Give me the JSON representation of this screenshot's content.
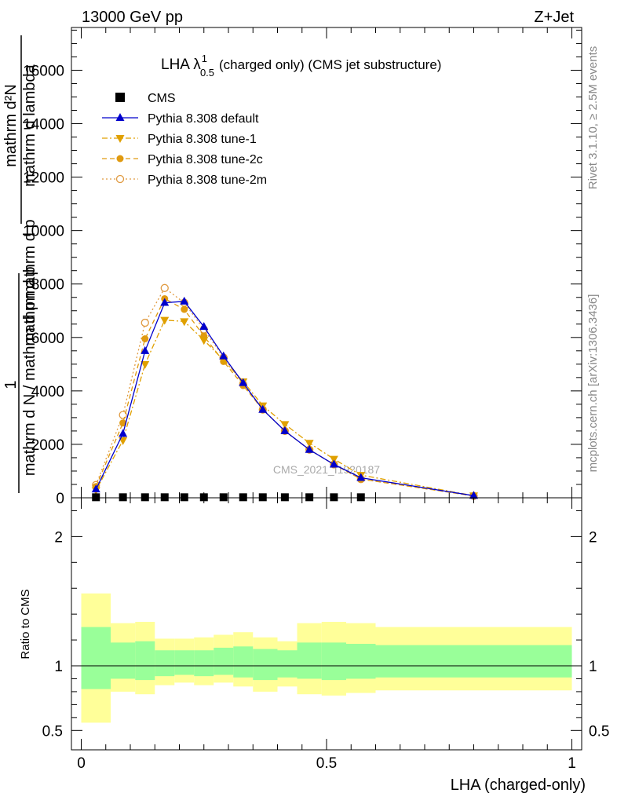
{
  "header": {
    "left": "13000 GeV pp",
    "right": "Z+Jet"
  },
  "side_labels": {
    "rivet": "Rivet 3.1.10, ≥ 2.5M events",
    "mcplots": "mcplots.cern.ch [arXiv:1306.3436]"
  },
  "chart_data": [
    {
      "type": "line",
      "title": "LHA λ",
      "title_sup": "1",
      "title_sub": "0.5",
      "title_rest": "(charged only) (CMS jet substructure)",
      "ylabel_top": "mathrm d²N",
      "ylabel_top2": "mathrm d p",
      "ylabel_mid": "mathrm d p",
      "ylabel_mid2": "mathrm d lambda",
      "ylabel_one": "1",
      "ylabel_bottom": "mathrm d N / mathrm d p",
      "ylabel_bottom2": "mathrm d lambda",
      "ylim": [
        0,
        17600
      ],
      "xlim": [
        -0.02,
        1.02
      ],
      "yticks": [
        0,
        2000,
        4000,
        6000,
        8000,
        10000,
        12000,
        14000,
        16000
      ],
      "ytick_labels": [
        "0",
        "2000",
        "4000",
        "6000",
        "8000",
        "10000",
        "12000",
        "14000",
        "16000"
      ],
      "watermark": "CMS_2021_I1920187",
      "legend_position": "top-left",
      "cms": {
        "name": "CMS",
        "x": [
          0.03,
          0.085,
          0.13,
          0.17,
          0.21,
          0.25,
          0.29,
          0.33,
          0.37,
          0.415,
          0.465,
          0.515,
          0.57
        ],
        "values": [
          20,
          20,
          20,
          20,
          20,
          20,
          20,
          20,
          20,
          20,
          20,
          20,
          20
        ]
      },
      "series": [
        {
          "name": "Pythia 8.308 default",
          "color": "#0000cc",
          "style": "solid",
          "marker": "triangle-up",
          "x": [
            0.03,
            0.085,
            0.13,
            0.17,
            0.21,
            0.25,
            0.29,
            0.33,
            0.37,
            0.415,
            0.465,
            0.515,
            0.57,
            0.8
          ],
          "values": [
            320,
            2400,
            5500,
            7300,
            7350,
            6400,
            5300,
            4300,
            3300,
            2500,
            1800,
            1250,
            750,
            80
          ]
        },
        {
          "name": "Pythia 8.308 tune-1",
          "color": "#e0a000",
          "style": "dashdot",
          "marker": "triangle-down",
          "x": [
            0.03,
            0.085,
            0.13,
            0.17,
            0.21,
            0.25,
            0.29,
            0.33,
            0.37,
            0.415,
            0.465,
            0.515,
            0.57,
            0.8
          ],
          "values": [
            280,
            2150,
            5000,
            6650,
            6600,
            5900,
            5150,
            4350,
            3450,
            2750,
            2050,
            1450,
            850,
            80
          ]
        },
        {
          "name": "Pythia 8.308 tune-2c",
          "color": "#e09a10",
          "style": "dashed",
          "marker": "circle-filled",
          "x": [
            0.03,
            0.085,
            0.13,
            0.17,
            0.21,
            0.25,
            0.29,
            0.33,
            0.37,
            0.415,
            0.465,
            0.515,
            0.57,
            0.8
          ],
          "values": [
            420,
            2800,
            5950,
            7450,
            7050,
            6050,
            5100,
            4200,
            3300,
            2500,
            1800,
            1250,
            700,
            70
          ]
        },
        {
          "name": "Pythia 8.308 tune-2m",
          "color": "#e09a40",
          "style": "dotted",
          "marker": "circle-open",
          "x": [
            0.03,
            0.085,
            0.13,
            0.17,
            0.21,
            0.25,
            0.29,
            0.33,
            0.37,
            0.415,
            0.465,
            0.515,
            0.57,
            0.8
          ],
          "values": [
            480,
            3100,
            6550,
            7850,
            7300,
            6300,
            5250,
            4250,
            3300,
            2500,
            1800,
            1250,
            700,
            70
          ]
        }
      ]
    },
    {
      "type": "area",
      "ylabel": "Ratio to CMS",
      "xlabel": "LHA (charged-only)",
      "ylim": [
        0.35,
        2.3
      ],
      "xlim": [
        -0.02,
        1.02
      ],
      "yticks": [
        0.5,
        1,
        2
      ],
      "ytick_labels": [
        "0.5",
        "1",
        "2"
      ],
      "xticks": [
        0,
        0.5,
        1
      ],
      "xtick_labels": [
        "0",
        "0.5",
        "1"
      ],
      "bins": [
        0,
        0.06,
        0.11,
        0.15,
        0.19,
        0.23,
        0.27,
        0.31,
        0.35,
        0.4,
        0.44,
        0.49,
        0.54,
        0.6,
        1.0
      ],
      "green_hi": [
        1.3,
        1.18,
        1.19,
        1.12,
        1.12,
        1.12,
        1.14,
        1.15,
        1.13,
        1.12,
        1.18,
        1.18,
        1.17,
        1.16
      ],
      "green_lo": [
        0.82,
        0.9,
        0.89,
        0.92,
        0.93,
        0.92,
        0.93,
        0.91,
        0.89,
        0.91,
        0.9,
        0.89,
        0.9,
        0.91
      ],
      "yellow_hi": [
        1.56,
        1.33,
        1.34,
        1.21,
        1.21,
        1.22,
        1.24,
        1.26,
        1.22,
        1.19,
        1.33,
        1.34,
        1.33,
        1.3
      ],
      "yellow_lo": [
        0.56,
        0.8,
        0.78,
        0.85,
        0.87,
        0.85,
        0.87,
        0.84,
        0.8,
        0.84,
        0.78,
        0.77,
        0.79,
        0.81
      ]
    }
  ]
}
